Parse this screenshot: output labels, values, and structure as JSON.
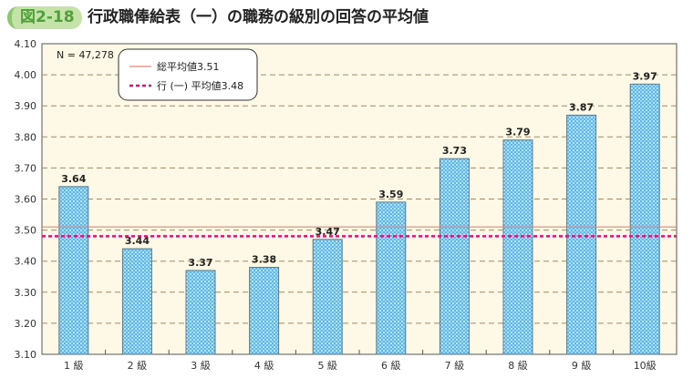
{
  "figure_label": "図2-18",
  "title": "行政職俸給表（一）の職務の級別の回答の平均値",
  "chart_data": {
    "type": "bar",
    "title": "行政職俸給表（一）の職務の級別の回答の平均値",
    "categories": [
      "1 級",
      "2 級",
      "3 級",
      "4 級",
      "5 級",
      "6 級",
      "7 級",
      "8 級",
      "9 級",
      "10級"
    ],
    "values": [
      3.64,
      3.44,
      3.37,
      3.38,
      3.47,
      3.59,
      3.73,
      3.79,
      3.87,
      3.97
    ],
    "ylim": [
      3.1,
      4.1
    ],
    "yticks": [
      "3.10",
      "3.20",
      "3.30",
      "3.40",
      "3.50",
      "3.60",
      "3.70",
      "3.80",
      "3.90",
      "4.00",
      "4.10"
    ],
    "grid": true,
    "annotation": "N = 47,278",
    "reference_lines": [
      {
        "label": "総平均値3.51",
        "value": 3.51,
        "color": "#f08070",
        "style": "solid"
      },
      {
        "label": "行 (一) 平均値3.48",
        "value": 3.48,
        "color": "#e0107a",
        "style": "dashed"
      }
    ],
    "legend_placement": "top-left",
    "colors": {
      "bar": "#5ab8e8",
      "plot_bg": "#fdf9e6",
      "grid": "#a08a6a"
    }
  }
}
